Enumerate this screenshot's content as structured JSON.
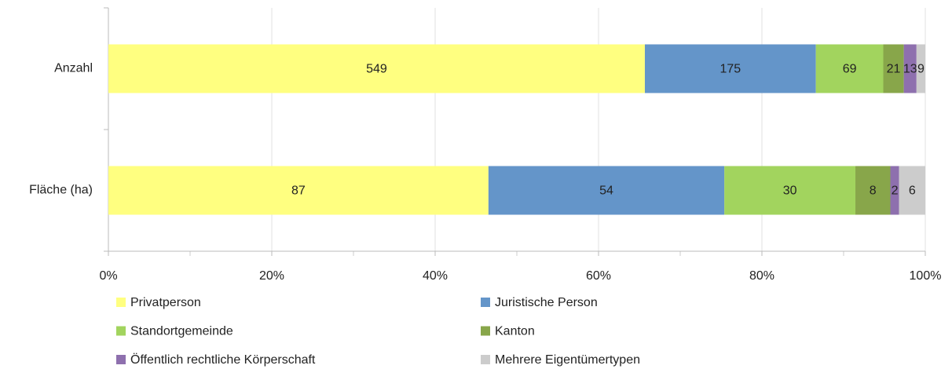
{
  "chart_data": {
    "type": "stacked-bar-100",
    "orientation": "horizontal",
    "categories": [
      "Anzahl",
      "Fläche (ha)"
    ],
    "series": [
      {
        "name": "Privatperson",
        "color": "#ffff80",
        "values": [
          549,
          87
        ]
      },
      {
        "name": "Juristische Person",
        "color": "#6495c9",
        "values": [
          175,
          54
        ]
      },
      {
        "name": "Standortgemeinde",
        "color": "#a2d45e",
        "values": [
          69,
          30
        ]
      },
      {
        "name": "Kanton",
        "color": "#88a64a",
        "values": [
          21,
          8
        ]
      },
      {
        "name": "Öffentlich rechtliche Körperschaft",
        "color": "#8e70ae",
        "values": [
          13,
          2
        ]
      },
      {
        "name": "Mehrere Eigentümertypen",
        "color": "#cccccc",
        "values": [
          9,
          6
        ]
      }
    ],
    "xlim": [
      0,
      100
    ],
    "xticks": [
      {
        "value": 0,
        "label": "0%"
      },
      {
        "value": 20,
        "label": "20%"
      },
      {
        "value": 40,
        "label": "40%"
      },
      {
        "value": 60,
        "label": "60%"
      },
      {
        "value": 80,
        "label": "80%"
      },
      {
        "value": 100,
        "label": "100%"
      }
    ],
    "grid": true,
    "legend": "bottom"
  }
}
